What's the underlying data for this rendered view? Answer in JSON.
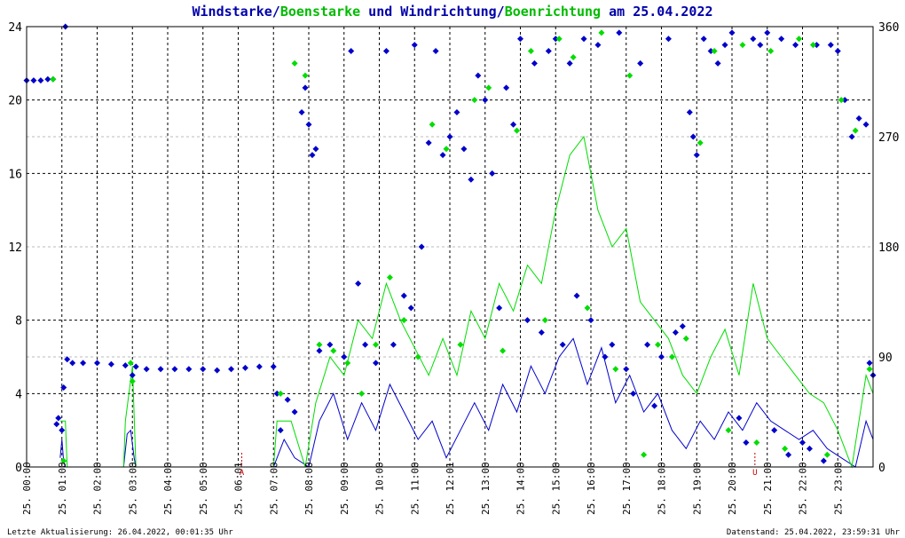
{
  "title": {
    "part1": "Windstarke",
    "sep1": "/",
    "part2": "Boenstarke",
    "mid": " und ",
    "part3": "Windrichtung",
    "sep2": "/",
    "part4": "Boenrichtung",
    "tail": " am 25.04.2022"
  },
  "footer": {
    "left": "Letzte Aktualisierung: 26.04.2022, 00:01:35 Uhr",
    "right": "Datenstand: 25.04.2022, 23:59:31 Uhr"
  },
  "colors": {
    "wind": "#0000cc",
    "gust": "#00dd00",
    "title_blue": "#0000aa",
    "title_green": "#00bb00",
    "grid": "#000000",
    "background": "#ffffff"
  },
  "chart_data": {
    "type": "line",
    "left_axis": {
      "min": 0,
      "max": 24,
      "ticks": [
        "0",
        "4",
        "8",
        "12",
        "16",
        "20",
        "24"
      ]
    },
    "right_axis": {
      "min": 0,
      "max": 360,
      "ticks": [
        "0",
        "90",
        "180",
        "270",
        "360"
      ]
    },
    "x_axis": {
      "min_hours": 0,
      "max_hours": 24,
      "ticks": [
        "25. 00:00",
        "25. 01:00",
        "25. 02:00",
        "25. 03:00",
        "25. 04:00",
        "25. 05:00",
        "25. 06:01",
        "25. 07:00",
        "25. 08:00",
        "25. 09:00",
        "25. 10:00",
        "25. 11:00",
        "25. 12:01",
        "25. 13:00",
        "25. 14:00",
        "25. 15:00",
        "25. 16:00",
        "25. 17:00",
        "25. 18:00",
        "25. 19:00",
        "25. 20:00",
        "25. 21:00",
        "25. 22:00",
        "25. 23:00"
      ]
    },
    "grid": true,
    "markers": [
      {
        "label": "A",
        "hour": 6.1
      },
      {
        "label": "U",
        "hour": 20.65
      }
    ],
    "series": [
      {
        "key": "wind_speed",
        "axis": "left",
        "style": "line",
        "points": [
          [
            0.95,
            0.5
          ],
          [
            1.0,
            1.5
          ],
          [
            1.05,
            0.3
          ],
          [
            1.1,
            0
          ],
          [
            2.75,
            0
          ],
          [
            2.85,
            1.8
          ],
          [
            2.95,
            2.0
          ],
          [
            3.05,
            0.5
          ],
          [
            3.1,
            0
          ],
          [
            7.0,
            0
          ],
          [
            7.3,
            1.5
          ],
          [
            7.6,
            0.5
          ],
          [
            8.0,
            0
          ],
          [
            8.3,
            2.5
          ],
          [
            8.7,
            4.0
          ],
          [
            9.1,
            1.5
          ],
          [
            9.5,
            3.5
          ],
          [
            9.9,
            2.0
          ],
          [
            10.3,
            4.5
          ],
          [
            10.7,
            3.0
          ],
          [
            11.1,
            1.5
          ],
          [
            11.5,
            2.5
          ],
          [
            11.9,
            0.5
          ],
          [
            12.3,
            2.0
          ],
          [
            12.7,
            3.5
          ],
          [
            13.1,
            2.0
          ],
          [
            13.5,
            4.5
          ],
          [
            13.9,
            3.0
          ],
          [
            14.3,
            5.5
          ],
          [
            14.7,
            4.0
          ],
          [
            15.1,
            6.0
          ],
          [
            15.5,
            7.0
          ],
          [
            15.9,
            4.5
          ],
          [
            16.3,
            6.5
          ],
          [
            16.7,
            3.5
          ],
          [
            17.1,
            5.0
          ],
          [
            17.5,
            3.0
          ],
          [
            17.9,
            4.0
          ],
          [
            18.3,
            2.0
          ],
          [
            18.7,
            1.0
          ],
          [
            19.1,
            2.5
          ],
          [
            19.5,
            1.5
          ],
          [
            19.9,
            3.0
          ],
          [
            20.3,
            2.0
          ],
          [
            20.7,
            3.5
          ],
          [
            21.1,
            2.5
          ],
          [
            21.5,
            2.0
          ],
          [
            21.9,
            1.5
          ],
          [
            22.3,
            2.0
          ],
          [
            22.7,
            1.0
          ],
          [
            23.1,
            0.5
          ],
          [
            23.5,
            0
          ],
          [
            23.8,
            2.5
          ],
          [
            24.0,
            1.5
          ]
        ]
      },
      {
        "key": "gust_speed",
        "axis": "left",
        "style": "line",
        "points": [
          [
            0.95,
            2.5
          ],
          [
            1.1,
            2.5
          ],
          [
            1.15,
            0
          ],
          [
            2.75,
            0
          ],
          [
            2.8,
            2.5
          ],
          [
            3.0,
            5.5
          ],
          [
            3.1,
            0
          ],
          [
            7.0,
            0
          ],
          [
            7.1,
            2.5
          ],
          [
            7.5,
            2.5
          ],
          [
            7.9,
            0
          ],
          [
            8.2,
            3.5
          ],
          [
            8.6,
            6.0
          ],
          [
            9.0,
            5.0
          ],
          [
            9.4,
            8.0
          ],
          [
            9.8,
            7.0
          ],
          [
            10.2,
            10.0
          ],
          [
            10.6,
            8.0
          ],
          [
            11.0,
            6.5
          ],
          [
            11.4,
            5.0
          ],
          [
            11.8,
            7.0
          ],
          [
            12.2,
            5.0
          ],
          [
            12.6,
            8.5
          ],
          [
            13.0,
            7.0
          ],
          [
            13.4,
            10.0
          ],
          [
            13.8,
            8.5
          ],
          [
            14.2,
            11.0
          ],
          [
            14.6,
            10.0
          ],
          [
            15.0,
            14.0
          ],
          [
            15.4,
            17.0
          ],
          [
            15.8,
            18.0
          ],
          [
            16.2,
            14.0
          ],
          [
            16.6,
            12.0
          ],
          [
            17.0,
            13.0
          ],
          [
            17.4,
            9.0
          ],
          [
            17.8,
            8.0
          ],
          [
            18.2,
            7.0
          ],
          [
            18.6,
            5.0
          ],
          [
            19.0,
            4.0
          ],
          [
            19.4,
            6.0
          ],
          [
            19.8,
            7.5
          ],
          [
            20.2,
            5.0
          ],
          [
            20.6,
            10.0
          ],
          [
            21.0,
            7.0
          ],
          [
            21.4,
            6.0
          ],
          [
            21.8,
            5.0
          ],
          [
            22.2,
            4.0
          ],
          [
            22.6,
            3.5
          ],
          [
            23.0,
            2.0
          ],
          [
            23.4,
            0
          ],
          [
            23.8,
            5.0
          ],
          [
            24.0,
            4.0
          ]
        ]
      },
      {
        "key": "wind_direction",
        "axis": "right",
        "style": "dots",
        "points": [
          [
            0.0,
            316
          ],
          [
            0.2,
            316
          ],
          [
            0.4,
            316
          ],
          [
            0.6,
            317
          ],
          [
            0.75,
            317
          ],
          [
            0.85,
            35
          ],
          [
            0.9,
            40
          ],
          [
            1.0,
            30
          ],
          [
            1.05,
            65
          ],
          [
            1.1,
            360
          ],
          [
            1.15,
            88
          ],
          [
            1.3,
            85
          ],
          [
            1.6,
            85
          ],
          [
            2.0,
            85
          ],
          [
            2.4,
            84
          ],
          [
            2.8,
            83
          ],
          [
            3.0,
            75
          ],
          [
            3.1,
            82
          ],
          [
            3.4,
            80
          ],
          [
            3.8,
            80
          ],
          [
            4.2,
            80
          ],
          [
            4.6,
            80
          ],
          [
            5.0,
            80
          ],
          [
            5.4,
            79
          ],
          [
            5.8,
            80
          ],
          [
            6.2,
            81
          ],
          [
            6.6,
            82
          ],
          [
            7.0,
            82
          ],
          [
            7.1,
            60
          ],
          [
            7.2,
            30
          ],
          [
            7.4,
            55
          ],
          [
            7.6,
            45
          ],
          [
            7.8,
            290
          ],
          [
            7.9,
            310
          ],
          [
            8.0,
            280
          ],
          [
            8.1,
            255
          ],
          [
            8.2,
            260
          ],
          [
            8.3,
            95
          ],
          [
            8.6,
            100
          ],
          [
            9.0,
            90
          ],
          [
            9.2,
            340
          ],
          [
            9.4,
            150
          ],
          [
            9.6,
            100
          ],
          [
            9.9,
            85
          ],
          [
            10.2,
            340
          ],
          [
            10.4,
            100
          ],
          [
            10.7,
            140
          ],
          [
            10.9,
            130
          ],
          [
            11.0,
            345
          ],
          [
            11.2,
            180
          ],
          [
            11.4,
            265
          ],
          [
            11.6,
            340
          ],
          [
            11.8,
            255
          ],
          [
            12.0,
            270
          ],
          [
            12.2,
            290
          ],
          [
            12.4,
            260
          ],
          [
            12.6,
            235
          ],
          [
            12.8,
            320
          ],
          [
            13.0,
            300
          ],
          [
            13.2,
            240
          ],
          [
            13.4,
            130
          ],
          [
            13.6,
            310
          ],
          [
            13.8,
            280
          ],
          [
            14.0,
            350
          ],
          [
            14.2,
            120
          ],
          [
            14.4,
            330
          ],
          [
            14.6,
            110
          ],
          [
            14.8,
            340
          ],
          [
            15.0,
            350
          ],
          [
            15.2,
            100
          ],
          [
            15.4,
            330
          ],
          [
            15.6,
            140
          ],
          [
            15.8,
            350
          ],
          [
            16.0,
            120
          ],
          [
            16.2,
            345
          ],
          [
            16.4,
            90
          ],
          [
            16.6,
            100
          ],
          [
            16.8,
            355
          ],
          [
            17.0,
            80
          ],
          [
            17.2,
            60
          ],
          [
            17.4,
            330
          ],
          [
            17.6,
            100
          ],
          [
            17.8,
            50
          ],
          [
            18.0,
            90
          ],
          [
            18.2,
            350
          ],
          [
            18.4,
            110
          ],
          [
            18.6,
            115
          ],
          [
            18.8,
            290
          ],
          [
            18.9,
            270
          ],
          [
            19.0,
            255
          ],
          [
            19.2,
            350
          ],
          [
            19.4,
            340
          ],
          [
            19.6,
            330
          ],
          [
            19.8,
            345
          ],
          [
            20.0,
            355
          ],
          [
            20.2,
            40
          ],
          [
            20.4,
            20
          ],
          [
            20.6,
            350
          ],
          [
            20.8,
            345
          ],
          [
            21.0,
            355
          ],
          [
            21.2,
            30
          ],
          [
            21.4,
            350
          ],
          [
            21.6,
            10
          ],
          [
            21.8,
            345
          ],
          [
            22.0,
            20
          ],
          [
            22.2,
            15
          ],
          [
            22.4,
            345
          ],
          [
            22.6,
            5
          ],
          [
            22.8,
            345
          ],
          [
            23.0,
            340
          ],
          [
            23.2,
            300
          ],
          [
            23.4,
            270
          ],
          [
            23.6,
            285
          ],
          [
            23.8,
            280
          ],
          [
            23.9,
            85
          ],
          [
            24.0,
            75
          ]
        ]
      },
      {
        "key": "gust_direction",
        "axis": "right",
        "style": "dots",
        "points": [
          [
            0.75,
            317
          ],
          [
            1.05,
            5
          ],
          [
            2.95,
            85
          ],
          [
            3.0,
            70
          ],
          [
            7.2,
            60
          ],
          [
            7.6,
            330
          ],
          [
            7.9,
            320
          ],
          [
            8.3,
            100
          ],
          [
            8.7,
            95
          ],
          [
            9.1,
            85
          ],
          [
            9.5,
            60
          ],
          [
            9.9,
            100
          ],
          [
            10.3,
            155
          ],
          [
            10.7,
            120
          ],
          [
            11.1,
            90
          ],
          [
            11.5,
            280
          ],
          [
            11.9,
            260
          ],
          [
            12.3,
            100
          ],
          [
            12.7,
            300
          ],
          [
            13.1,
            310
          ],
          [
            13.5,
            95
          ],
          [
            13.9,
            275
          ],
          [
            14.3,
            340
          ],
          [
            14.7,
            120
          ],
          [
            15.1,
            350
          ],
          [
            15.5,
            335
          ],
          [
            15.9,
            130
          ],
          [
            16.3,
            355
          ],
          [
            16.7,
            80
          ],
          [
            17.1,
            320
          ],
          [
            17.5,
            10
          ],
          [
            17.9,
            100
          ],
          [
            18.3,
            90
          ],
          [
            18.7,
            105
          ],
          [
            19.1,
            265
          ],
          [
            19.5,
            340
          ],
          [
            19.9,
            30
          ],
          [
            20.3,
            345
          ],
          [
            20.7,
            20
          ],
          [
            21.1,
            340
          ],
          [
            21.5,
            15
          ],
          [
            21.9,
            350
          ],
          [
            22.3,
            345
          ],
          [
            22.7,
            10
          ],
          [
            23.1,
            300
          ],
          [
            23.5,
            275
          ],
          [
            23.9,
            80
          ]
        ]
      }
    ]
  }
}
